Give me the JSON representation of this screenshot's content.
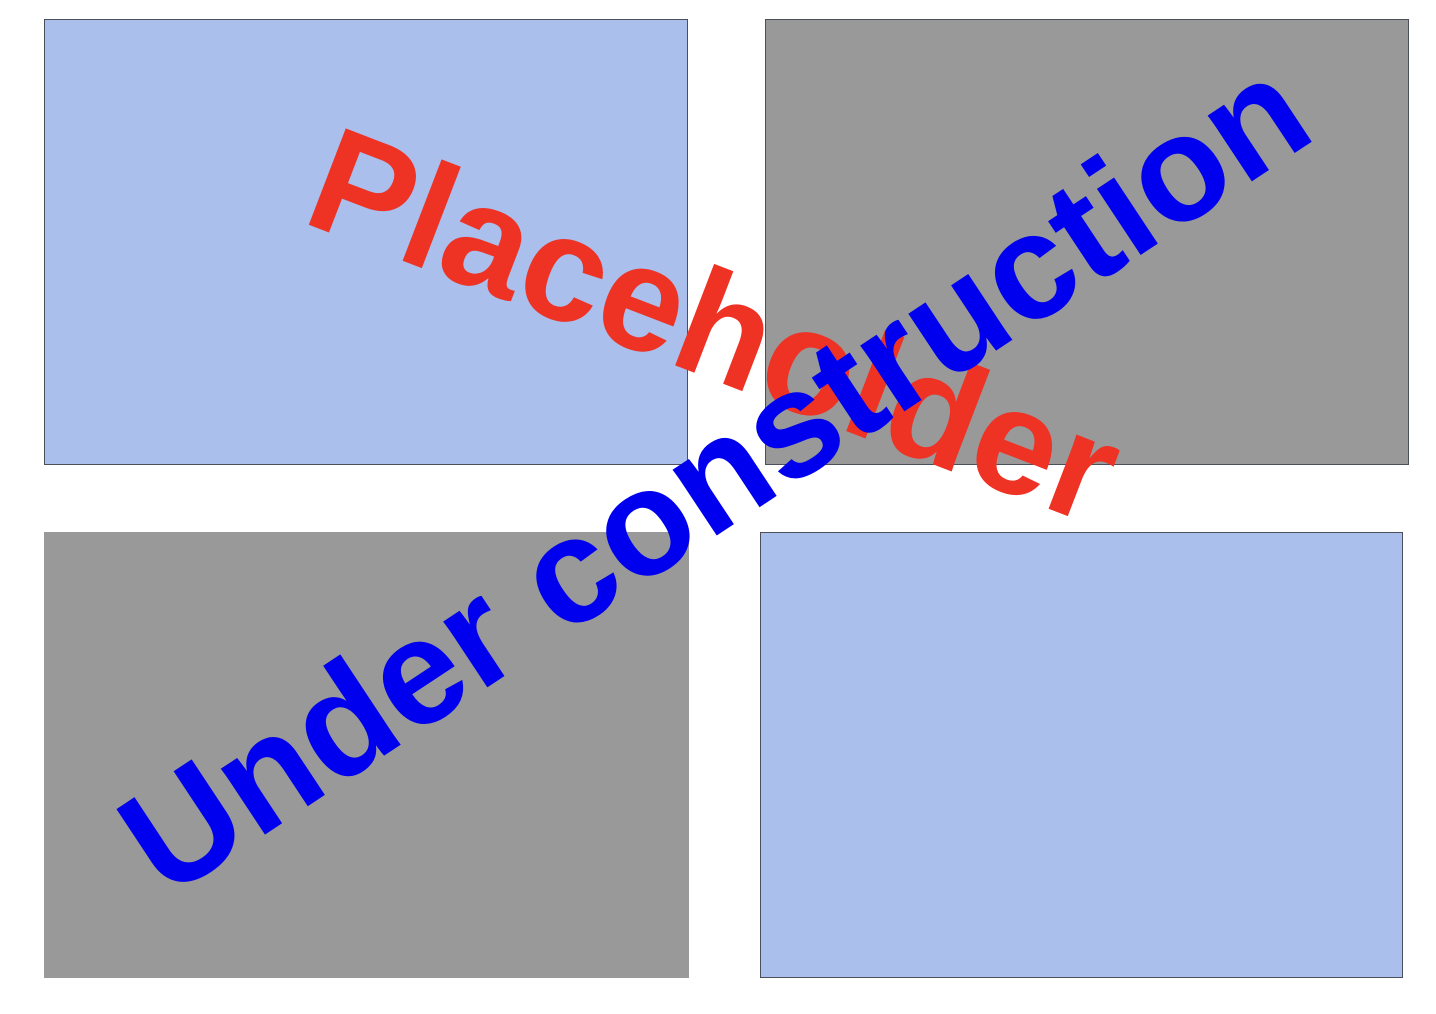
{
  "panels": {
    "top_left": {
      "fill": "#aabfec"
    },
    "top_right": {
      "fill": "#999999"
    },
    "bottom_left": {
      "fill": "#999999"
    },
    "bottom_right": {
      "fill": "#aabfec"
    }
  },
  "watermarks": {
    "placeholder": {
      "text": "Placeholder",
      "color": "#ee3224"
    },
    "under_construction": {
      "text": "Under construction",
      "color": "#0000ee"
    }
  }
}
